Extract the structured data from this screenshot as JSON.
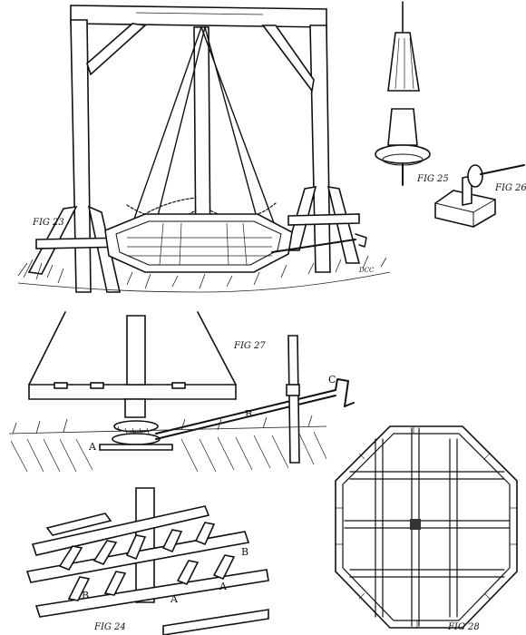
{
  "figures": {
    "fig23": "FIG 23",
    "fig24": "FIG 24",
    "fig25": "FIG 25",
    "fig26": "FIG 26",
    "fig27": "FIG 27",
    "fig28": "FIG 28"
  },
  "letters": {
    "a": "A",
    "b": "B",
    "c": "C"
  },
  "signature": "DCC"
}
